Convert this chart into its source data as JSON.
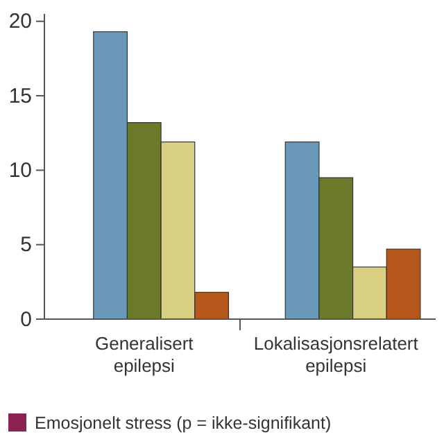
{
  "chart_data": {
    "type": "bar",
    "categories": [
      "Generalisert epilepsi",
      "Lokalisasjonsrelatert epilepsi"
    ],
    "series": [
      {
        "name": "Emosjonelt stress (p = ikke-signifikant)",
        "color": "#8b2252",
        "values": [
          null,
          null
        ]
      },
      {
        "color": "#6a98b8",
        "values": [
          19.3,
          11.9
        ]
      },
      {
        "color": "#6b7a28",
        "values": [
          13.2,
          9.5
        ]
      },
      {
        "color": "#d8d080",
        "values": [
          11.9,
          3.5
        ]
      },
      {
        "color": "#b5561a",
        "values": [
          1.8,
          4.7
        ]
      }
    ],
    "ylim": [
      0,
      20.5
    ],
    "yticks": [
      0,
      5,
      10,
      15,
      20
    ],
    "grid": false,
    "legend": "bottom"
  }
}
